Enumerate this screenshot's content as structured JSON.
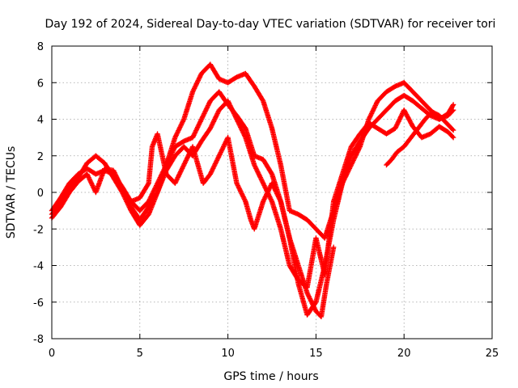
{
  "chart_data": {
    "type": "scatter",
    "title": "Day 192 of 2024, Sidereal Day-to-day VTEC variation (SDTVAR) for receiver tori",
    "xlabel": "GPS time / hours",
    "ylabel": "SDTVAR / TECUs",
    "xlim": [
      0,
      25
    ],
    "ylim": [
      -8,
      8
    ],
    "xticks": [
      "0",
      "5",
      "10",
      "15",
      "20",
      "25"
    ],
    "yticks": [
      "-8",
      "-6",
      "-4",
      "-2",
      "0",
      "2",
      "4",
      "6",
      "8"
    ],
    "grid": true,
    "marker": "plus",
    "color": "#ff0000",
    "series": [
      {
        "x": [
          0.0,
          0.5,
          1.0,
          1.5,
          2.0,
          2.5,
          3.0,
          3.5,
          4.0,
          4.5,
          5.0,
          5.5,
          6.0,
          6.5,
          7.0,
          7.5,
          8.0,
          8.5,
          9.0,
          9.5,
          10.0,
          10.5,
          11.0,
          11.5,
          12.0,
          12.5,
          13.0,
          13.5,
          14.0,
          14.5,
          15.0,
          15.5,
          16.0,
          16.5,
          17.0,
          17.5,
          18.0,
          18.5,
          19.0,
          19.5,
          20.0,
          20.5,
          21.0,
          21.5,
          22.0,
          22.5,
          22.8
        ],
        "y": [
          -1.0,
          -0.3,
          0.5,
          1.0,
          1.3,
          1.0,
          1.2,
          1.0,
          0.3,
          -0.5,
          -1.0,
          -0.5,
          0.5,
          1.5,
          2.5,
          2.8,
          3.0,
          4.0,
          5.0,
          5.5,
          4.8,
          4.2,
          3.5,
          2.0,
          1.8,
          1.0,
          -0.5,
          -2.5,
          -5.0,
          -6.7,
          -6.0,
          -4.0,
          -1.5,
          0.5,
          2.0,
          2.8,
          3.5,
          4.0,
          4.5,
          5.0,
          5.3,
          5.0,
          4.6,
          4.2,
          4.0,
          4.3,
          4.8
        ]
      },
      {
        "x": [
          0.0,
          0.5,
          1.0,
          1.5,
          2.0,
          2.5,
          3.0,
          3.5,
          4.0,
          4.5,
          5.0,
          5.5,
          6.0,
          6.5,
          7.0,
          7.5,
          8.0,
          8.5,
          9.0,
          9.5,
          10.0,
          10.5,
          11.0,
          11.5,
          12.0,
          12.5,
          13.0,
          13.5,
          14.0,
          14.5,
          15.0,
          15.5,
          16.0,
          16.5,
          17.0,
          17.5,
          18.0,
          18.5,
          19.0,
          19.5,
          20.0,
          20.5,
          21.0,
          21.5,
          22.0,
          22.5,
          22.8
        ],
        "y": [
          -1.2,
          -0.6,
          0.2,
          0.8,
          1.6,
          2.0,
          1.6,
          0.8,
          0.0,
          -1.0,
          -1.8,
          -1.2,
          0.0,
          1.5,
          3.0,
          4.0,
          5.5,
          6.5,
          7.0,
          6.2,
          6.0,
          6.3,
          6.5,
          5.8,
          5.0,
          3.5,
          1.5,
          -1.0,
          -1.2,
          -1.5,
          -2.0,
          -2.5,
          -1.0,
          0.5,
          1.5,
          2.5,
          4.0,
          5.0,
          5.5,
          5.8,
          6.0,
          5.5,
          5.0,
          4.5,
          4.0,
          4.2,
          4.5
        ]
      },
      {
        "x": [
          0.0,
          0.5,
          1.0,
          1.5,
          2.0,
          2.5,
          3.0,
          3.5,
          4.0,
          4.5,
          5.0,
          5.5,
          6.0,
          6.5,
          7.0,
          7.5,
          8.0,
          8.5,
          9.0,
          9.5,
          10.0,
          10.5,
          11.0,
          11.5,
          12.0,
          12.5,
          13.0,
          13.5,
          14.0,
          14.5,
          15.0,
          15.5,
          16.0,
          16.5,
          17.0,
          17.5,
          18.0,
          18.5,
          19.0,
          19.5,
          20.0,
          20.5,
          21.0,
          21.5,
          22.0,
          22.5,
          22.8
        ],
        "y": [
          -1.4,
          -0.8,
          0.0,
          0.6,
          1.0,
          0.0,
          1.3,
          1.2,
          0.2,
          -0.8,
          -1.5,
          -0.8,
          0.0,
          1.2,
          2.0,
          2.5,
          2.0,
          2.8,
          3.5,
          4.5,
          5.0,
          4.0,
          3.0,
          1.5,
          0.5,
          -0.5,
          -2.0,
          -4.0,
          -4.8,
          -5.2,
          -2.5,
          -4.5,
          -0.5,
          1.0,
          2.5,
          3.2,
          3.8,
          3.5,
          3.2,
          3.5,
          4.5,
          3.6,
          3.0,
          3.2,
          3.6,
          3.3,
          3.0
        ]
      },
      {
        "x": [
          4.5,
          5.0,
          5.5,
          5.7,
          6.0,
          6.5,
          7.0,
          7.5,
          8.0,
          8.3,
          8.6,
          9.0,
          9.5,
          10.0,
          10.5,
          11.0,
          11.3,
          11.5,
          12.0,
          12.5,
          13.0,
          13.5,
          14.0,
          14.5,
          15.0,
          15.3,
          15.6,
          16.0
        ],
        "y": [
          -0.5,
          -0.3,
          0.5,
          2.5,
          3.2,
          1.0,
          0.5,
          1.5,
          2.5,
          1.5,
          0.5,
          1.0,
          2.0,
          3.0,
          0.5,
          -0.5,
          -1.5,
          -2.0,
          -0.5,
          0.5,
          -0.5,
          -2.5,
          -4.0,
          -5.5,
          -6.5,
          -6.8,
          -5.0,
          -3.0
        ]
      },
      {
        "x": [
          19.0,
          19.3,
          19.6,
          20.0,
          20.4,
          20.8,
          21.2,
          21.6,
          22.0,
          22.4,
          22.8
        ],
        "y": [
          1.5,
          1.8,
          2.2,
          2.5,
          3.0,
          3.5,
          4.0,
          4.4,
          4.2,
          3.8,
          3.4
        ]
      }
    ]
  }
}
